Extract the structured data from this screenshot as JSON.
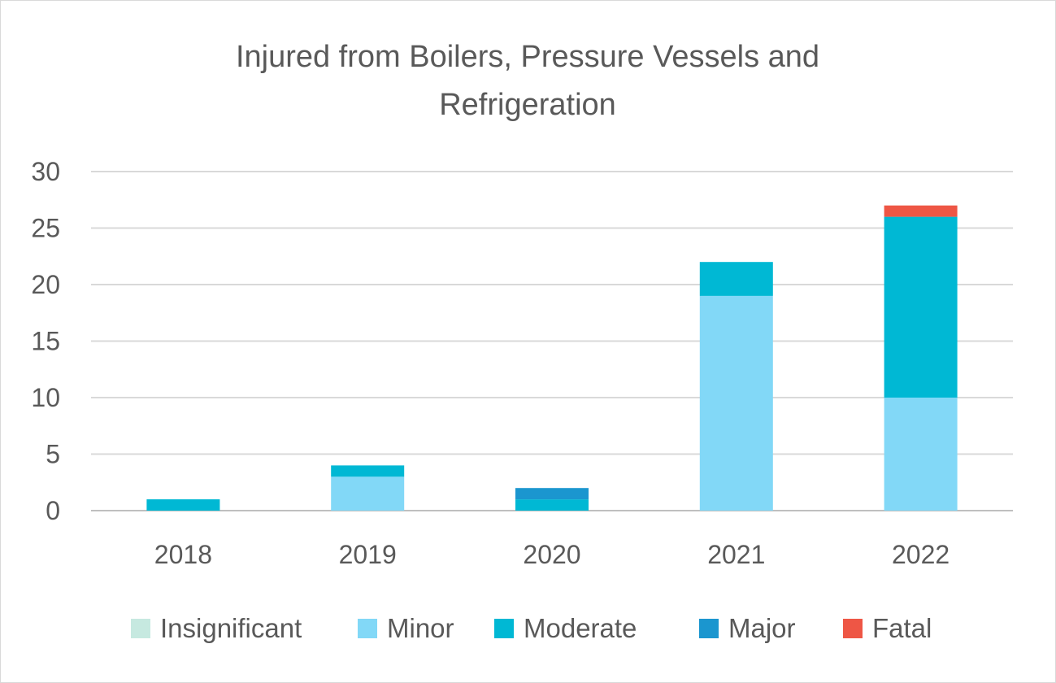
{
  "chart_data": {
    "type": "bar",
    "stacked": true,
    "title_lines": [
      "Injured from Boilers, Pressure Vessels and",
      "Refrigeration"
    ],
    "xlabel": "",
    "ylabel": "",
    "categories": [
      "2018",
      "2019",
      "2020",
      "2021",
      "2022"
    ],
    "ylim": [
      0,
      30
    ],
    "yticks": [
      "0",
      "5",
      "10",
      "15",
      "20",
      "25",
      "30"
    ],
    "grid": true,
    "legend_position": "bottom",
    "series": [
      {
        "name": "Insignificant",
        "color": "#c6e9e0",
        "values": [
          0,
          0,
          0,
          0,
          0
        ]
      },
      {
        "name": "Minor",
        "color": "#82d8f7",
        "values": [
          0,
          3,
          0,
          19,
          10
        ]
      },
      {
        "name": "Moderate",
        "color": "#00b8d4",
        "values": [
          1,
          1,
          1,
          3,
          16
        ]
      },
      {
        "name": "Major",
        "color": "#1b96cf",
        "values": [
          0,
          0,
          1,
          0,
          0
        ]
      },
      {
        "name": "Fatal",
        "color": "#ee5645",
        "values": [
          0,
          0,
          0,
          0,
          1
        ]
      }
    ]
  }
}
